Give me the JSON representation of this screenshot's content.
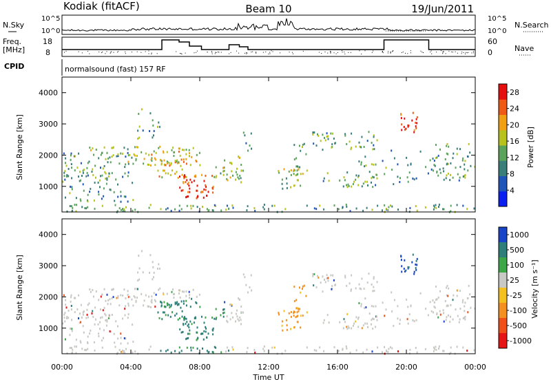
{
  "header": {
    "station": "Kodiak (fitACF)",
    "beam": "Beam 10",
    "date": "19/Jun/2011"
  },
  "noise_panel": {
    "left_label": "N.Sky",
    "right_label": "N.Search",
    "left_ticks": [
      "10^5",
      "10^0"
    ],
    "right_ticks": [
      "10^5",
      "10^0"
    ]
  },
  "freq_panel": {
    "left_label_1": "Freq.",
    "left_label_2": "[MHz]",
    "right_label": "Nave",
    "left_ticks": [
      "18",
      "8"
    ],
    "right_ticks": [
      "60",
      "0"
    ]
  },
  "cpid": {
    "label": "CPID",
    "value": "normalsound (fast) 157 RF"
  },
  "chart_data": [
    {
      "type": "heatmap",
      "quantity": "Power",
      "ylabel": "Slant Range [km]",
      "xlabel": "Time UT",
      "ylim": [
        180,
        4500
      ],
      "y_ticks": [
        "1000",
        "2000",
        "3000",
        "4000"
      ],
      "colorbar": {
        "label": "Power [dB]",
        "ticks": [
          "4",
          "8",
          "12",
          "16",
          "20",
          "24",
          "28"
        ],
        "range": [
          0,
          30
        ],
        "colors": [
          "#0a1ff0",
          "#1f55b8",
          "#3a7e7a",
          "#5aa35a",
          "#b7c21c",
          "#f0a010",
          "#ef5a14",
          "#e60f0f"
        ]
      }
    },
    {
      "type": "heatmap",
      "quantity": "Velocity",
      "ylabel": "Slant Range [km]",
      "xlabel": "Time UT",
      "ylim": [
        180,
        4500
      ],
      "y_ticks": [
        "1000",
        "2000",
        "3000",
        "4000"
      ],
      "colorbar": {
        "label": "Velocity [m s⁻¹]",
        "ticks": [
          "1000",
          "500",
          "100",
          "25",
          "-25",
          "-100",
          "-500",
          "-1000"
        ],
        "colors": [
          "#1844c8",
          "#2e7f7a",
          "#3da646",
          "#c8c8c4",
          "#f4c020",
          "#f49020",
          "#f05018",
          "#e61414"
        ]
      }
    }
  ],
  "time_axis": {
    "label": "Time UT",
    "ticks": [
      "00:00",
      "04:00",
      "08:00",
      "12:00",
      "16:00",
      "20:00",
      "00:00"
    ]
  }
}
